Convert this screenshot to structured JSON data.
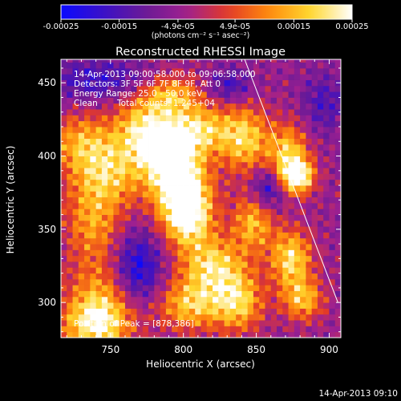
{
  "chart_data": {
    "type": "heatmap",
    "title": "Reconstructed RHESSI Image",
    "xlabel": "Heliocentric X (arcsec)",
    "ylabel": "Heliocentric Y (arcsec)",
    "xlim": [
      716,
      908
    ],
    "ylim": [
      276,
      466
    ],
    "xticks": [
      "750",
      "800",
      "850",
      "900"
    ],
    "xtick_values": [
      750,
      800,
      850,
      900
    ],
    "yticks": [
      "300",
      "350",
      "400",
      "450"
    ],
    "ytick_values": [
      300,
      350,
      400,
      450
    ],
    "colorbar": {
      "unit_label": "(photons cm⁻² s⁻¹ asec⁻²)",
      "range": [
        -0.00025,
        0.00025
      ],
      "tick_labels": [
        "-0.00025",
        "-0.00015",
        "-4.9e-05",
        "4.9e-05",
        "0.00015",
        "0.00025"
      ],
      "tick_values": [
        -0.00025,
        -0.00015,
        -4.9e-05,
        4.9e-05,
        0.00015,
        0.00025
      ],
      "colors": [
        "#0a0aff",
        "#3a10c8",
        "#6a1a96",
        "#9e2090",
        "#e23a28",
        "#ff8a0c",
        "#ffd830",
        "#ffffff"
      ]
    },
    "annotations": {
      "time_range": "14-Apr-2013 09:00:58.000 to 09:06:58.000",
      "detectors": "Detectors: 3F 5F 6F 7F 8F 9F, Att 0",
      "energy": "Energy Range: 25.0 - 50.0 keV",
      "method": "Clean",
      "counts": "Total counts: 1.245+04",
      "peak": "Position of Peak = [878,386]"
    },
    "peak": [
      878,
      386
    ],
    "limb_line": [
      [
        842,
        466
      ],
      [
        906,
        300
      ]
    ],
    "bright_sources": [
      {
        "x": 730,
        "y": 410,
        "value": 0.00011,
        "sx": 16,
        "sy": 14
      },
      {
        "x": 748,
        "y": 388,
        "value": 0.00014,
        "sx": 18,
        "sy": 16
      },
      {
        "x": 738,
        "y": 355,
        "value": 0.0001,
        "sx": 14,
        "sy": 18
      },
      {
        "x": 745,
        "y": 300,
        "value": 0.00013,
        "sx": 18,
        "sy": 22
      },
      {
        "x": 738,
        "y": 285,
        "value": 0.00012,
        "sx": 16,
        "sy": 12
      },
      {
        "x": 772,
        "y": 418,
        "value": 0.00017,
        "sx": 14,
        "sy": 16
      },
      {
        "x": 790,
        "y": 404,
        "value": 0.00022,
        "sx": 12,
        "sy": 14
      },
      {
        "x": 798,
        "y": 380,
        "value": 0.00024,
        "sx": 14,
        "sy": 16
      },
      {
        "x": 803,
        "y": 358,
        "value": 0.00021,
        "sx": 12,
        "sy": 14
      },
      {
        "x": 812,
        "y": 418,
        "value": 0.00016,
        "sx": 14,
        "sy": 12
      },
      {
        "x": 792,
        "y": 442,
        "value": 0.00013,
        "sx": 14,
        "sy": 10
      },
      {
        "x": 820,
        "y": 325,
        "value": 0.00018,
        "sx": 16,
        "sy": 14
      },
      {
        "x": 805,
        "y": 298,
        "value": 0.00015,
        "sx": 16,
        "sy": 12
      },
      {
        "x": 842,
        "y": 412,
        "value": 0.00017,
        "sx": 12,
        "sy": 16
      },
      {
        "x": 848,
        "y": 355,
        "value": 0.00014,
        "sx": 10,
        "sy": 14
      },
      {
        "x": 838,
        "y": 300,
        "value": 0.00016,
        "sx": 12,
        "sy": 14
      },
      {
        "x": 872,
        "y": 402,
        "value": 0.00016,
        "sx": 10,
        "sy": 14
      },
      {
        "x": 878,
        "y": 386,
        "value": 0.00025,
        "sx": 8,
        "sy": 8
      },
      {
        "x": 874,
        "y": 330,
        "value": 0.00019,
        "sx": 10,
        "sy": 14
      },
      {
        "x": 882,
        "y": 302,
        "value": 0.00014,
        "sx": 10,
        "sy": 10
      }
    ],
    "dim_regions": [
      {
        "x": 742,
        "y": 452,
        "value": -0.00012,
        "sx": 26,
        "sy": 10
      },
      {
        "x": 768,
        "y": 322,
        "value": -0.0002,
        "sx": 12,
        "sy": 18
      },
      {
        "x": 858,
        "y": 378,
        "value": -0.00016,
        "sx": 8,
        "sy": 10
      },
      {
        "x": 832,
        "y": 448,
        "value": -0.00012,
        "sx": 10,
        "sy": 8
      },
      {
        "x": 896,
        "y": 436,
        "value": -0.0001,
        "sx": 10,
        "sy": 14
      }
    ]
  },
  "footer_timestamp": "14-Apr-2013 09:10"
}
